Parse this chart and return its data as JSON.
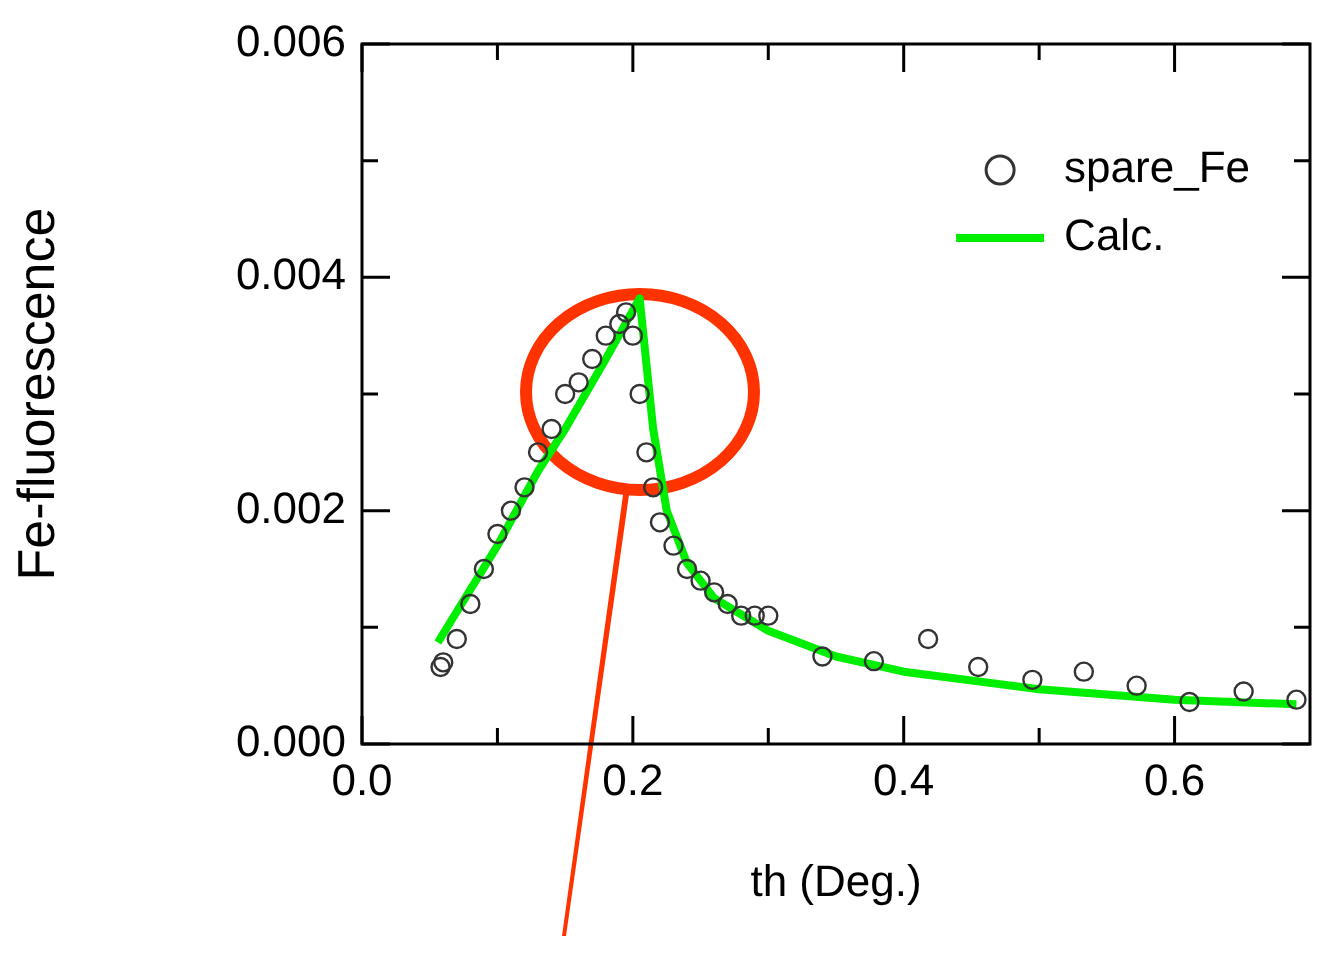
{
  "chart_data": {
    "type": "scatter",
    "xlabel": "th (Deg.)",
    "ylabel": "Fe-fluorescence",
    "xlim": [
      0,
      0.7
    ],
    "ylim": [
      0,
      0.006
    ],
    "xticks": [
      {
        "value": 0,
        "label": "0.0"
      },
      {
        "value": 0.1,
        "label": null
      },
      {
        "value": 0.2,
        "label": "0.2"
      },
      {
        "value": 0.3,
        "label": null
      },
      {
        "value": 0.4,
        "label": "0.4"
      },
      {
        "value": 0.5,
        "label": null
      },
      {
        "value": 0.6,
        "label": "0.6"
      }
    ],
    "yticks": [
      {
        "value": 0,
        "label": "0.000"
      },
      {
        "value": 0.001,
        "label": null
      },
      {
        "value": 0.002,
        "label": "0.002"
      },
      {
        "value": 0.003,
        "label": null
      },
      {
        "value": 0.004,
        "label": "0.004"
      },
      {
        "value": 0.005,
        "label": null
      },
      {
        "value": 0.006,
        "label": "0.006"
      }
    ],
    "grid": false,
    "legend": "top right",
    "series": [
      {
        "name": "spare_Fe",
        "marker": "circle",
        "color": "#333333",
        "x": [
          0.058,
          0.06,
          0.07,
          0.08,
          0.09,
          0.1,
          0.11,
          0.12,
          0.13,
          0.14,
          0.15,
          0.16,
          0.17,
          0.18,
          0.19,
          0.195,
          0.2,
          0.205,
          0.21,
          0.215,
          0.22,
          0.23,
          0.24,
          0.25,
          0.26,
          0.27,
          0.28,
          0.29,
          0.3,
          0.34,
          0.378,
          0.418,
          0.455,
          0.495,
          0.533,
          0.572,
          0.611,
          0.651,
          0.69
        ],
        "values": [
          0.00066,
          0.0007,
          0.0009,
          0.0012,
          0.0015,
          0.0018,
          0.002,
          0.0022,
          0.0025,
          0.0027,
          0.003,
          0.0031,
          0.0033,
          0.0035,
          0.0036,
          0.0037,
          0.0035,
          0.003,
          0.0025,
          0.0022,
          0.0019,
          0.0017,
          0.0015,
          0.0014,
          0.0013,
          0.0012,
          0.0011,
          0.0011,
          0.0011,
          0.00075,
          0.00071,
          0.0009,
          0.00066,
          0.00055,
          0.00062,
          0.0005,
          0.00036,
          0.00045,
          0.00038
        ]
      },
      {
        "name": "Calc.",
        "type": "line",
        "marker": "none",
        "line_style": "solid",
        "color": "#00ee00",
        "x": [
          0.056,
          0.1,
          0.13,
          0.15,
          0.18,
          0.205,
          0.215,
          0.225,
          0.24,
          0.26,
          0.3,
          0.35,
          0.4,
          0.5,
          0.6,
          0.69
        ],
        "values": [
          0.00087,
          0.0017,
          0.00234,
          0.0027,
          0.0033,
          0.00382,
          0.0027,
          0.002,
          0.00155,
          0.00125,
          0.00097,
          0.00075,
          0.00062,
          0.00047,
          0.00038,
          0.00034
        ]
      }
    ]
  }
}
